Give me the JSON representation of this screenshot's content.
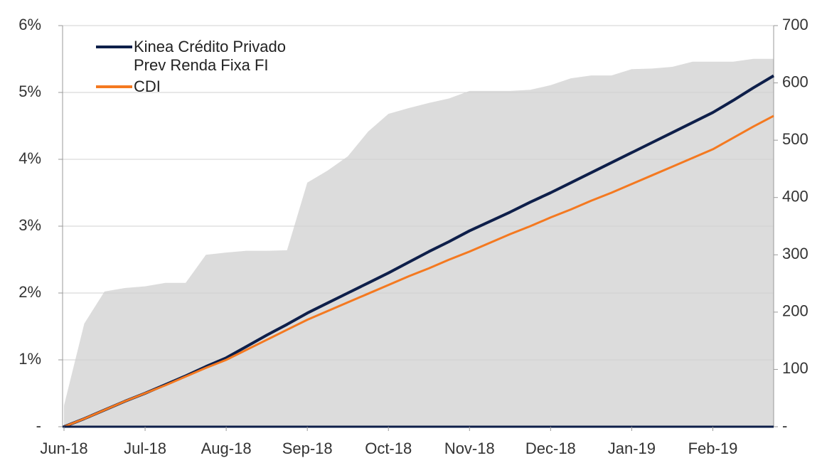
{
  "chart_data": {
    "type": "line",
    "categories": [
      "Jun-18",
      null,
      null,
      null,
      "Jul-18",
      null,
      null,
      null,
      "Aug-18",
      null,
      null,
      null,
      "Sep-18",
      null,
      null,
      null,
      "Oct-18",
      null,
      null,
      null,
      "Nov-18",
      null,
      null,
      null,
      "Dec-18",
      null,
      null,
      null,
      "Jan-19",
      null,
      null,
      null,
      "Feb-19",
      null,
      null,
      null
    ],
    "series": [
      {
        "type": "area",
        "axis": "y2",
        "color": "#dcdcdc",
        "values": [
          37,
          180,
          236,
          242,
          245,
          251,
          251,
          300,
          304,
          307,
          307,
          308,
          426,
          447,
          472,
          515,
          546,
          556,
          565,
          573,
          586,
          586,
          586,
          588,
          596,
          608,
          613,
          613,
          624,
          625,
          628,
          637,
          637,
          637,
          642,
          642
        ]
      },
      {
        "name": "Kinea Crédito Privado Prev Renda Fixa FI",
        "color": "#0e1f4a",
        "values": [
          0,
          0.12,
          0.25,
          0.38,
          0.5,
          0.63,
          0.76,
          0.9,
          1.03,
          1.2,
          1.37,
          1.53,
          1.7,
          1.85,
          2.0,
          2.15,
          2.3,
          2.46,
          2.62,
          2.77,
          2.93,
          3.07,
          3.21,
          3.36,
          3.5,
          3.65,
          3.8,
          3.95,
          4.1,
          4.25,
          4.4,
          4.55,
          4.7,
          4.88,
          5.07,
          5.25
        ]
      },
      {
        "name": "CDI",
        "color": "#f47920",
        "values": [
          0,
          0.12,
          0.25,
          0.38,
          0.5,
          0.62,
          0.75,
          0.88,
          1.0,
          1.15,
          1.3,
          1.45,
          1.6,
          1.73,
          1.86,
          1.99,
          2.12,
          2.25,
          2.37,
          2.5,
          2.62,
          2.75,
          2.88,
          3.0,
          3.13,
          3.25,
          3.38,
          3.5,
          3.63,
          3.76,
          3.89,
          4.02,
          4.15,
          4.32,
          4.49,
          4.65
        ]
      }
    ],
    "ylim": [
      0,
      6
    ],
    "yticks": [
      {
        "value": 0,
        "label": "-"
      },
      {
        "value": 1,
        "label": "1%"
      },
      {
        "value": 2,
        "label": "2%"
      },
      {
        "value": 3,
        "label": "3%"
      },
      {
        "value": 4,
        "label": "4%"
      },
      {
        "value": 5,
        "label": "5%"
      },
      {
        "value": 6,
        "label": "6%"
      }
    ],
    "y2lim": [
      0,
      700
    ],
    "y2ticks": [
      {
        "value": 0,
        "label": "-"
      },
      100,
      200,
      300,
      400,
      500,
      600,
      700
    ],
    "grid": true,
    "legend": "upper left"
  }
}
